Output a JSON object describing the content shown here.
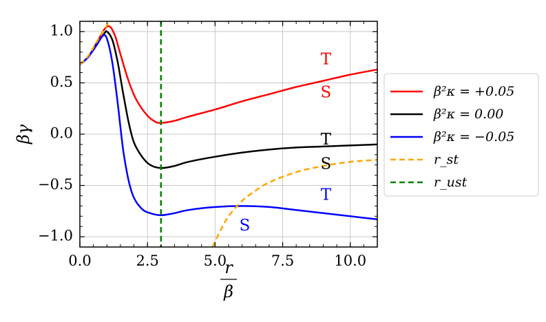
{
  "chart_data": {
    "type": "line",
    "xlabel": {
      "numerator": "r",
      "denominator": "β"
    },
    "ylabel": "βγ",
    "xlim": [
      0,
      11
    ],
    "ylim": [
      -1.1,
      1.1
    ],
    "xticks": [
      0.0,
      2.5,
      5.0,
      7.5,
      10.0
    ],
    "xtick_labels": [
      "0.0",
      "2.5",
      "5.0",
      "7.5",
      "10.0"
    ],
    "yticks": [
      1.0,
      0.5,
      0.0,
      -0.5,
      -1.0
    ],
    "ytick_labels": [
      "1.0",
      "0.5",
      "0.0",
      "−0.5",
      "−1.0"
    ],
    "grid": true,
    "legend_position": "right, outside",
    "series": [
      {
        "name": "β²κ = +0.05",
        "color": "#ff0000",
        "style": "solid",
        "points": [
          [
            0,
            0.68
          ],
          [
            0.3,
            0.75
          ],
          [
            0.6,
            0.88
          ],
          [
            0.9,
            1.02
          ],
          [
            1.1,
            1.05
          ],
          [
            1.3,
            0.96
          ],
          [
            1.5,
            0.78
          ],
          [
            1.8,
            0.52
          ],
          [
            2.1,
            0.33
          ],
          [
            2.5,
            0.18
          ],
          [
            2.8,
            0.12
          ],
          [
            3.0,
            0.11
          ],
          [
            3.5,
            0.13
          ],
          [
            4.0,
            0.17
          ],
          [
            5.0,
            0.24
          ],
          [
            6.0,
            0.32
          ],
          [
            7.0,
            0.39
          ],
          [
            8.0,
            0.46
          ],
          [
            9.0,
            0.52
          ],
          [
            10.0,
            0.58
          ],
          [
            11.0,
            0.63
          ]
        ]
      },
      {
        "name": "β²κ = 0.00",
        "color": "#000000",
        "style": "solid",
        "points": [
          [
            0,
            0.68
          ],
          [
            0.3,
            0.75
          ],
          [
            0.6,
            0.87
          ],
          [
            0.9,
            0.98
          ],
          [
            1.0,
            1.0
          ],
          [
            1.2,
            0.92
          ],
          [
            1.4,
            0.7
          ],
          [
            1.6,
            0.4
          ],
          [
            1.8,
            0.12
          ],
          [
            2.0,
            -0.08
          ],
          [
            2.3,
            -0.22
          ],
          [
            2.6,
            -0.3
          ],
          [
            3.0,
            -0.33
          ],
          [
            3.5,
            -0.31
          ],
          [
            4.0,
            -0.27
          ],
          [
            5.0,
            -0.22
          ],
          [
            6.0,
            -0.18
          ],
          [
            7.0,
            -0.15
          ],
          [
            8.0,
            -0.13
          ],
          [
            9.0,
            -0.12
          ],
          [
            10.0,
            -0.11
          ],
          [
            11.0,
            -0.1
          ]
        ]
      },
      {
        "name": "β²κ = −0.05",
        "color": "#0000ff",
        "style": "solid",
        "points": [
          [
            0,
            0.68
          ],
          [
            0.3,
            0.75
          ],
          [
            0.6,
            0.86
          ],
          [
            0.85,
            0.96
          ],
          [
            1.0,
            0.93
          ],
          [
            1.2,
            0.7
          ],
          [
            1.4,
            0.3
          ],
          [
            1.6,
            -0.15
          ],
          [
            1.8,
            -0.45
          ],
          [
            2.0,
            -0.62
          ],
          [
            2.3,
            -0.73
          ],
          [
            2.6,
            -0.77
          ],
          [
            3.0,
            -0.79
          ],
          [
            3.5,
            -0.77
          ],
          [
            4.0,
            -0.74
          ],
          [
            5.0,
            -0.71
          ],
          [
            6.0,
            -0.7
          ],
          [
            7.0,
            -0.71
          ],
          [
            8.0,
            -0.74
          ],
          [
            9.0,
            -0.77
          ],
          [
            10.0,
            -0.8
          ],
          [
            11.0,
            -0.83
          ]
        ]
      },
      {
        "name": "r_st",
        "color": "#ffa500",
        "style": "dashed",
        "points_upper": [
          [
            0,
            0.68
          ],
          [
            0.3,
            0.76
          ],
          [
            0.6,
            0.89
          ],
          [
            0.9,
            1.02
          ],
          [
            1.1,
            1.1
          ]
        ],
        "points_lower": [
          [
            4.9,
            -1.1
          ],
          [
            5.2,
            -0.94
          ],
          [
            5.5,
            -0.8
          ],
          [
            6.0,
            -0.65
          ],
          [
            6.5,
            -0.55
          ],
          [
            7.0,
            -0.47
          ],
          [
            8.0,
            -0.37
          ],
          [
            9.0,
            -0.31
          ],
          [
            10.0,
            -0.27
          ],
          [
            11.0,
            -0.25
          ]
        ]
      },
      {
        "name": "r_ust",
        "color": "#008000",
        "style": "dashed",
        "vertical_x": 3.0
      }
    ],
    "annotations": [
      {
        "text": "T",
        "color": "#ff0000",
        "x": 9.1,
        "y": 0.72
      },
      {
        "text": "S",
        "color": "#ff0000",
        "x": 9.1,
        "y": 0.4
      },
      {
        "text": "T",
        "color": "#000000",
        "x": 9.1,
        "y": -0.06
      },
      {
        "text": "S",
        "color": "#000000",
        "x": 9.1,
        "y": -0.3
      },
      {
        "text": "T",
        "color": "#0000ff",
        "x": 9.1,
        "y": -0.6
      },
      {
        "text": "S",
        "color": "#0000ff",
        "x": 6.1,
        "y": -0.9
      }
    ],
    "legend": [
      {
        "label": "β²κ = +0.05",
        "color": "#ff0000",
        "style": "solid"
      },
      {
        "label": "β²κ = 0.00",
        "color": "#000000",
        "style": "solid"
      },
      {
        "label": "β²κ = −0.05",
        "color": "#0000ff",
        "style": "solid"
      },
      {
        "label": "r_st",
        "color": "#ffa500",
        "style": "dashed"
      },
      {
        "label": "r_ust",
        "color": "#008000",
        "style": "dashed"
      }
    ]
  }
}
